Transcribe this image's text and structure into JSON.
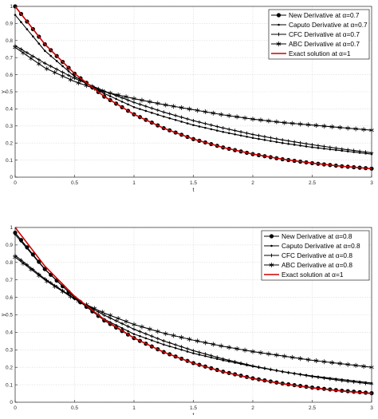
{
  "chart_data": [
    {
      "type": "line",
      "xlabel": "t",
      "ylabel": "y",
      "xlim": [
        0,
        3
      ],
      "ylim": [
        0,
        1
      ],
      "xticks": [
        "0",
        "0.5",
        "1",
        "1.5",
        "2",
        "2.5",
        "3"
      ],
      "yticks": [
        "0",
        "0.1",
        "0.2",
        "0.3",
        "0.4",
        "0.5",
        "0.6",
        "0.7",
        "0.8",
        "0.9",
        "1"
      ],
      "grid": true,
      "legend_position": "top-right",
      "x": [
        0,
        0.25,
        0.5,
        0.75,
        1,
        1.25,
        1.5,
        1.75,
        2,
        2.25,
        2.5,
        2.75,
        3
      ],
      "series": [
        {
          "name": "New Derivative at α=0.7",
          "marker": "circle",
          "color": "#000000",
          "values": [
            1.0,
            0.778,
            0.606,
            0.472,
            0.368,
            0.287,
            0.223,
            0.174,
            0.135,
            0.105,
            0.082,
            0.064,
            0.05
          ]
        },
        {
          "name": "Caputo Derivative at α=0.7",
          "marker": "dot",
          "color": "#000000",
          "values": [
            0.95,
            0.74,
            0.59,
            0.49,
            0.41,
            0.355,
            0.305,
            0.265,
            0.23,
            0.2,
            0.175,
            0.155,
            0.135
          ]
        },
        {
          "name": "CFC Derivative at α=0.7",
          "marker": "plus",
          "color": "#000000",
          "values": [
            0.77,
            0.667,
            0.579,
            0.504,
            0.438,
            0.381,
            0.331,
            0.288,
            0.25,
            0.218,
            0.19,
            0.165,
            0.143
          ]
        },
        {
          "name": "ABC Derivative at α=0.7",
          "marker": "star",
          "color": "#000000",
          "values": [
            0.76,
            0.64,
            0.56,
            0.5,
            0.46,
            0.425,
            0.395,
            0.365,
            0.34,
            0.32,
            0.305,
            0.29,
            0.275
          ]
        },
        {
          "name": "Exact solution at α=1",
          "marker": "none",
          "color": "#cc0000",
          "values": [
            1.0,
            0.7788,
            0.6065,
            0.4724,
            0.3679,
            0.2865,
            0.2231,
            0.1738,
            0.1353,
            0.1054,
            0.0821,
            0.0639,
            0.0498
          ]
        }
      ]
    },
    {
      "type": "line",
      "xlabel": "t",
      "ylabel": "y",
      "xlim": [
        0,
        3
      ],
      "ylim": [
        0,
        1
      ],
      "xticks": [
        "0",
        "0.5",
        "1",
        "1.5",
        "2",
        "2.5",
        "3"
      ],
      "yticks": [
        "0",
        "0.1",
        "0.2",
        "0.3",
        "0.4",
        "0.5",
        "0.6",
        "0.7",
        "0.8",
        "0.9",
        "1"
      ],
      "grid": true,
      "legend_position": "top-right",
      "x": [
        0,
        0.25,
        0.5,
        0.75,
        1,
        1.25,
        1.5,
        1.75,
        2,
        2.25,
        2.5,
        2.75,
        3
      ],
      "series": [
        {
          "name": "New Derivative at α=0.8",
          "marker": "circle",
          "color": "#000000",
          "values": [
            0.97,
            0.762,
            0.598,
            0.468,
            0.367,
            0.287,
            0.224,
            0.175,
            0.137,
            0.107,
            0.084,
            0.066,
            0.052
          ]
        },
        {
          "name": "Caputo Derivative at α=0.8",
          "marker": "dot",
          "color": "#000000",
          "values": [
            0.96,
            0.76,
            0.6,
            0.475,
            0.39,
            0.33,
            0.28,
            0.24,
            0.205,
            0.175,
            0.15,
            0.13,
            0.11
          ]
        },
        {
          "name": "CFC Derivative at α=0.8",
          "marker": "plus",
          "color": "#000000",
          "values": [
            0.84,
            0.706,
            0.593,
            0.498,
            0.418,
            0.351,
            0.295,
            0.248,
            0.208,
            0.175,
            0.147,
            0.123,
            0.104
          ]
        },
        {
          "name": "ABC Derivative at α=0.8",
          "marker": "star",
          "color": "#000000",
          "values": [
            0.83,
            0.7,
            0.59,
            0.51,
            0.445,
            0.395,
            0.355,
            0.32,
            0.29,
            0.265,
            0.24,
            0.22,
            0.2
          ]
        },
        {
          "name": "Exact solution at α=1",
          "marker": "none",
          "color": "#cc0000",
          "values": [
            1.0,
            0.7788,
            0.6065,
            0.4724,
            0.3679,
            0.2865,
            0.2231,
            0.1738,
            0.1353,
            0.1054,
            0.0821,
            0.0639,
            0.0498
          ]
        }
      ]
    }
  ]
}
